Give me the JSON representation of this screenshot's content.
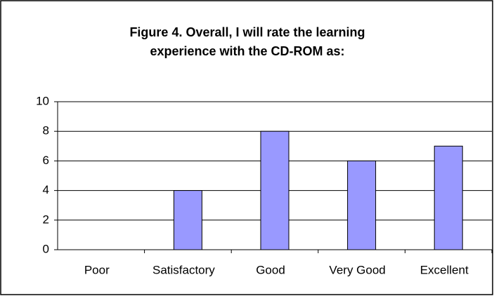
{
  "chart_data": {
    "type": "bar",
    "title": [
      "Figure 4. Overall, I will rate the learning",
      "experience with the CD-ROM as:"
    ],
    "categories": [
      "Poor",
      "Satisfactory",
      "Good",
      "Very Good",
      "Excellent"
    ],
    "values": [
      0,
      4,
      8,
      6,
      7
    ],
    "color": "#9999ff",
    "ylim": [
      0,
      10
    ],
    "yticks": [
      0,
      2,
      4,
      6,
      8,
      10
    ],
    "grid": true
  }
}
